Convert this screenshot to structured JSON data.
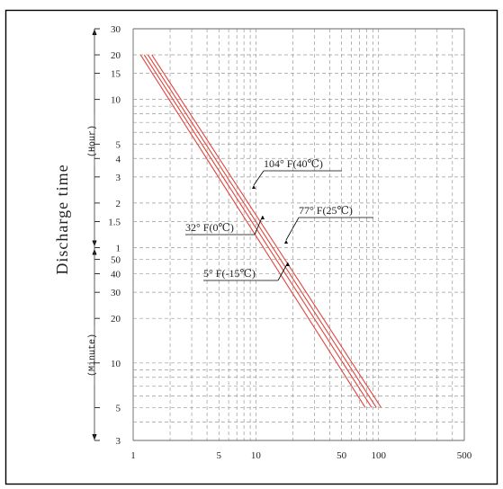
{
  "chart_data": {
    "type": "line",
    "xscale": "log",
    "yscale": "log",
    "xlim": [
      1,
      500
    ],
    "ylim_minutes": [
      3,
      1800
    ],
    "grid": true,
    "ylabel": "Discharge time",
    "y_hour_unit": "(Hour)",
    "y_minute_unit": "(Minute)",
    "x_tick_labels": [
      "1",
      "5",
      "10",
      "50",
      "100",
      "500"
    ],
    "y_hour_tick_labels": [
      "30",
      "20",
      "15",
      "10",
      "5",
      "4",
      "3",
      "2",
      "1.5",
      "1"
    ],
    "y_minute_tick_labels": [
      "50",
      "40",
      "30",
      "20",
      "10",
      "5",
      "3"
    ],
    "series_color": "#e0463e",
    "series": [
      {
        "name": "104° F(40℃)",
        "x": [
          1.42,
          105
        ],
        "y_minutes": [
          1200,
          5
        ]
      },
      {
        "name": "77° F(25℃)",
        "x": [
          1.32,
          96
        ],
        "y_minutes": [
          1200,
          5
        ]
      },
      {
        "name": "32° F(0℃)",
        "x": [
          1.23,
          88
        ],
        "y_minutes": [
          1200,
          5
        ]
      },
      {
        "name": "5° F(-15℃)",
        "x": [
          1.15,
          78
        ],
        "y_minutes": [
          1200,
          5
        ]
      }
    ]
  }
}
